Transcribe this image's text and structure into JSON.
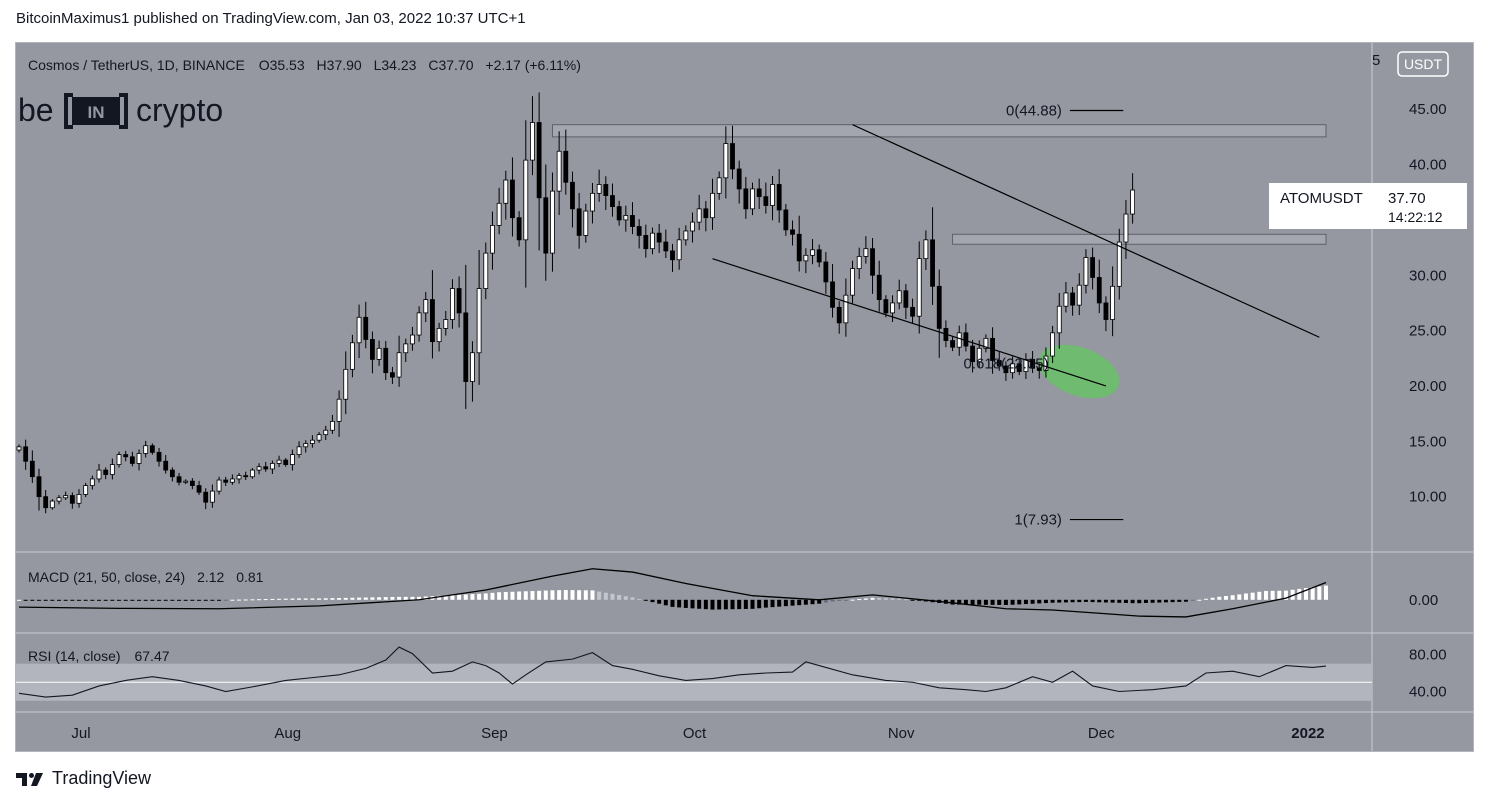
{
  "header": {
    "publisher_line": "BitcoinMaximus1 published on TradingView.com, Jan 03, 2022 10:37 UTC+1"
  },
  "footer": {
    "brand": "TradingView"
  },
  "colors": {
    "background": "#9598a1",
    "up_candle": "#ffffff",
    "down_candle": "#000000",
    "wick": "#000000",
    "highlight": "#6abf69",
    "rsi_band": "#b2b5be",
    "text": "#131722"
  },
  "chart_data": [
    {
      "type": "candlestick",
      "title": "Cosmos / TetherUS, 1D, BINANCE",
      "symbol": "ATOMUSDT",
      "ohlc_summary": {
        "o_label": "O",
        "open": "35.53",
        "h_label": "H",
        "high": "37.90",
        "l_label": "L",
        "low": "34.23",
        "c_label": "C",
        "close": "37.70",
        "change": "+2.17 (+6.11%)"
      },
      "last_price": "37.70",
      "countdown": "14:22:12",
      "currency_label": "USDT",
      "watermark": "beincrypto",
      "x_ticks": [
        "Jul",
        "Aug",
        "Sep",
        "Oct",
        "Nov",
        "Dec",
        "2022"
      ],
      "y_ticks": [
        10,
        15,
        20,
        25,
        30,
        35,
        40,
        45
      ],
      "y_tick_labels": [
        "10.00",
        "15.00",
        "20.00",
        "25.00",
        "30.00",
        "",
        "40.00",
        "45.00"
      ],
      "y_top_partial_label": "5",
      "ylim": [
        5,
        50
      ],
      "x_range_days": [
        0,
        196
      ],
      "month_start_days": [
        0,
        31,
        62,
        92,
        123,
        153,
        184
      ],
      "closes": [
        14.5,
        13.2,
        11.8,
        10.0,
        9.0,
        9.6,
        9.9,
        10.1,
        9.4,
        10.2,
        11.0,
        11.6,
        12.4,
        12.0,
        12.9,
        13.8,
        13.6,
        13.0,
        13.9,
        14.6,
        14.0,
        13.2,
        12.4,
        11.8,
        11.3,
        11.4,
        11.0,
        10.4,
        9.5,
        10.5,
        11.5,
        11.3,
        11.6,
        11.9,
        11.8,
        12.4,
        12.7,
        12.5,
        13.0,
        13.3,
        12.9,
        13.8,
        14.5,
        14.8,
        15.1,
        15.6,
        16.0,
        16.8,
        18.8,
        21.5,
        23.9,
        26.2,
        24.2,
        22.4,
        23.4,
        21.2,
        20.8,
        23.0,
        23.8,
        24.6,
        26.6,
        27.8,
        24.0,
        25.2,
        26.0,
        28.8,
        26.6,
        20.4,
        23.0,
        28.8,
        32.0,
        34.5,
        36.5,
        38.6,
        35.2,
        33.2,
        40.4,
        43.8,
        37.0,
        32.0,
        37.6,
        41.2,
        38.4,
        36.0,
        33.6,
        35.8,
        37.4,
        38.2,
        37.2,
        36.2,
        35.0,
        35.4,
        34.4,
        33.6,
        32.4,
        33.8,
        33.0,
        32.2,
        31.4,
        33.2,
        34.0,
        34.8,
        36.0,
        35.2,
        37.4,
        38.8,
        41.9,
        39.6,
        37.8,
        36.0,
        37.8,
        37.1,
        36.3,
        38.2,
        35.9,
        34.1,
        33.7,
        31.3,
        31.8,
        32.3,
        31.2,
        29.4,
        27.1,
        25.7,
        28.2,
        30.6,
        31.7,
        32.4,
        30.0,
        27.8,
        26.6,
        27.5,
        28.6,
        27.1,
        26.3,
        31.5,
        33.2,
        29.0,
        25.2,
        24.1,
        23.5,
        24.8,
        23.6,
        22.2,
        23.4,
        24.3,
        22.3,
        21.8,
        21.2,
        22.0,
        21.3,
        22.4,
        21.6,
        21.4,
        22.7,
        24.8,
        27.2,
        28.4,
        27.3,
        29.1,
        31.6,
        29.8,
        27.5,
        26.0,
        29.0,
        33.0,
        35.53,
        37.7
      ]
    },
    {
      "type": "annotations",
      "fib_levels": [
        {
          "label": "0(44.88)",
          "value": 44.88
        },
        {
          "label": "0.618(22.05)",
          "value": 22.05
        },
        {
          "label": "1(7.93)",
          "value": 7.93
        }
      ],
      "resistance_zones": [
        [
          42.5,
          43.6
        ],
        [
          32.8,
          33.7
        ]
      ],
      "descending_channel": {
        "upper_line": [
          {
            "x": 125,
            "y": 43.6
          },
          {
            "x": 195,
            "y": 24.4
          }
        ],
        "lower_line": [
          {
            "x": 104,
            "y": 31.5
          },
          {
            "x": 163,
            "y": 20.0
          }
        ]
      },
      "highlight_ellipse_center": {
        "x": 159,
        "y": 21.3
      }
    },
    {
      "type": "macd",
      "title": "MACD (21, 50, close, 24)",
      "values_display": [
        "2.12",
        "0.81"
      ],
      "y_tick_label": "0.00",
      "macd_line": [
        [
          0,
          -0.9
        ],
        [
          15,
          -1.05
        ],
        [
          30,
          -1.1
        ],
        [
          45,
          -0.75
        ],
        [
          60,
          0.0
        ],
        [
          70,
          1.2
        ],
        [
          80,
          2.9
        ],
        [
          86,
          3.8
        ],
        [
          92,
          3.4
        ],
        [
          100,
          2.0
        ],
        [
          110,
          0.5
        ],
        [
          120,
          0.0
        ],
        [
          128,
          0.6
        ],
        [
          138,
          -0.2
        ],
        [
          148,
          -1.1
        ],
        [
          155,
          -1.25
        ],
        [
          162,
          -1.65
        ],
        [
          168,
          -2.0
        ],
        [
          175,
          -2.1
        ],
        [
          182,
          -1.1
        ],
        [
          190,
          0.2
        ],
        [
          196,
          2.12
        ]
      ],
      "ylim": [
        -2.6,
        5.0
      ]
    },
    {
      "type": "rsi",
      "title": "RSI (14, close)",
      "value_display": "67.47",
      "y_tick_labels": [
        "80.00",
        "40.00"
      ],
      "band_range": [
        30,
        70
      ],
      "rsi_line": [
        [
          0,
          38
        ],
        [
          4,
          34
        ],
        [
          8,
          36
        ],
        [
          12,
          46
        ],
        [
          16,
          52
        ],
        [
          20,
          56
        ],
        [
          24,
          52
        ],
        [
          28,
          46
        ],
        [
          31,
          40
        ],
        [
          35,
          45
        ],
        [
          40,
          52
        ],
        [
          44,
          55
        ],
        [
          48,
          58
        ],
        [
          52,
          65
        ],
        [
          55,
          74
        ],
        [
          57,
          88
        ],
        [
          59,
          81
        ],
        [
          62,
          60
        ],
        [
          65,
          62
        ],
        [
          68,
          72
        ],
        [
          70,
          68
        ],
        [
          72,
          60
        ],
        [
          74,
          48
        ],
        [
          76,
          58
        ],
        [
          79,
          72
        ],
        [
          83,
          75
        ],
        [
          86,
          82
        ],
        [
          89,
          68
        ],
        [
          92,
          64
        ],
        [
          96,
          57
        ],
        [
          100,
          52
        ],
        [
          104,
          54
        ],
        [
          108,
          58
        ],
        [
          112,
          60
        ],
        [
          116,
          61
        ],
        [
          118,
          72
        ],
        [
          121,
          66
        ],
        [
          125,
          58
        ],
        [
          130,
          52
        ],
        [
          134,
          50
        ],
        [
          138,
          44
        ],
        [
          142,
          42
        ],
        [
          145,
          40
        ],
        [
          148,
          44
        ],
        [
          152,
          56
        ],
        [
          155,
          50
        ],
        [
          158,
          62
        ],
        [
          161,
          46
        ],
        [
          165,
          40
        ],
        [
          170,
          42
        ],
        [
          175,
          46
        ],
        [
          178,
          60
        ],
        [
          182,
          62
        ],
        [
          186,
          56
        ],
        [
          190,
          68
        ],
        [
          194,
          66
        ],
        [
          196,
          67.47
        ]
      ],
      "ylim": [
        20,
        100
      ]
    }
  ]
}
